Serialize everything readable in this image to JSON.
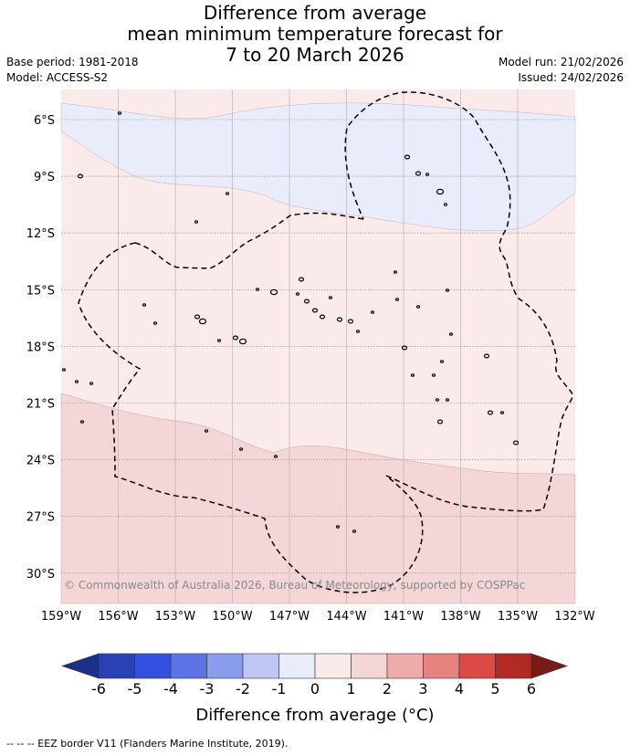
{
  "title": {
    "line1": "Difference from average",
    "line2": "mean minimum temperature forecast for",
    "line3": "7 to 20 March 2026"
  },
  "meta": {
    "base_period": "Base period: 1981-2018",
    "model": "Model: ACCESS-S2",
    "model_run": "Model run: 21/02/2026",
    "issued": "Issued: 24/02/2026"
  },
  "map": {
    "lat_labels": [
      "6°S",
      "9°S",
      "12°S",
      "15°S",
      "18°S",
      "21°S",
      "24°S",
      "27°S",
      "30°S"
    ],
    "lon_labels": [
      "159°W",
      "156°W",
      "153°W",
      "150°W",
      "147°W",
      "144°W",
      "141°W",
      "138°W",
      "135°W",
      "132°W"
    ],
    "copyright": "© Commonwealth of Australia 2026, Bureau of Meteorology, supported by COSPPac",
    "band_colors": {
      "neg_0_1": "#e9ecfb",
      "pos_0_1": "#fbeaea",
      "pos_1_2": "#f5d6d6"
    }
  },
  "colorbar": {
    "ticks": [
      "-6",
      "-5",
      "-4",
      "-3",
      "-2",
      "-1",
      "0",
      "1",
      "2",
      "3",
      "4",
      "5",
      "6"
    ],
    "colors": [
      "#1c2f8a",
      "#2a40b5",
      "#3350e0",
      "#5c74e6",
      "#8a9ced",
      "#bdc6f4",
      "#e9ecfb",
      "#fbeaea",
      "#f5d6d6",
      "#efaaaa",
      "#e78280",
      "#db4a44",
      "#b22a24",
      "#7a1a16"
    ],
    "title": "Difference from average (°C)"
  },
  "footer": "-- -- -- EEZ border V11 (Flanders Marine Institute, 2019)."
}
